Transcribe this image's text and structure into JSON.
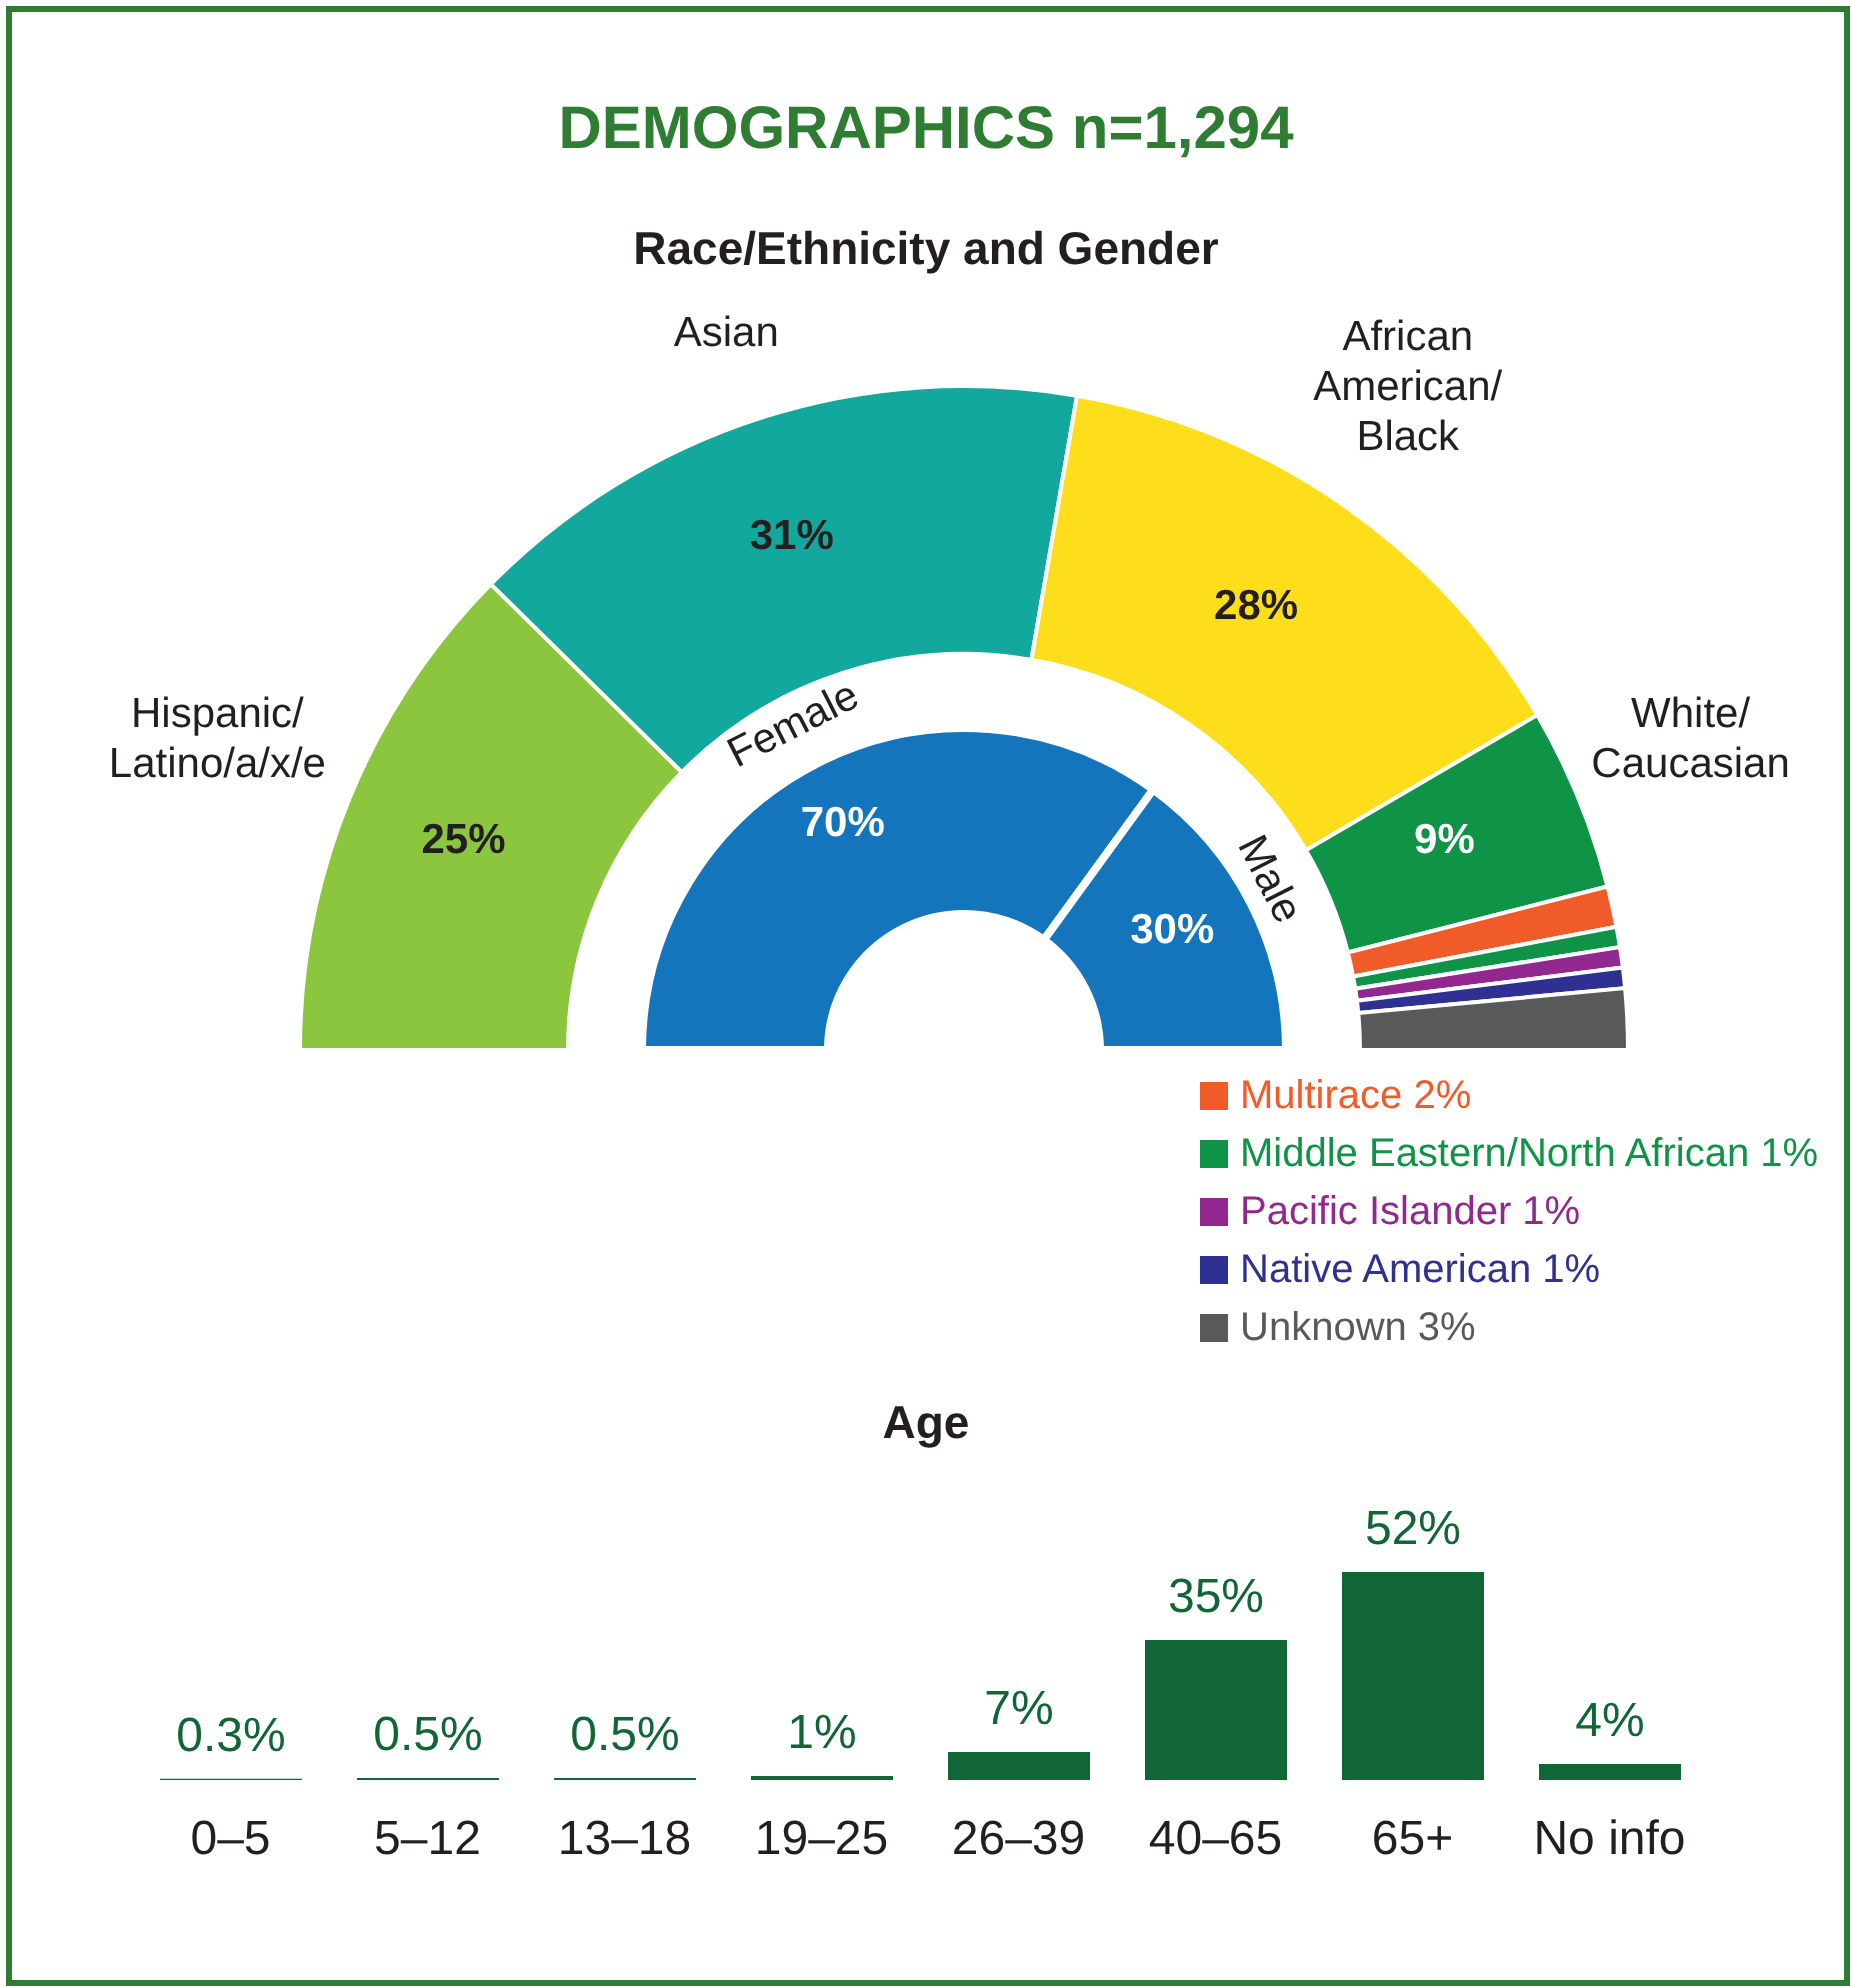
{
  "chart_data": [
    {
      "type": "donut",
      "title": "DEMOGRAPHICS n=1,294",
      "subtitle": "Race/Ethnicity and Gender",
      "categories": [
        "Hispanic/\nLatino/a/x/e",
        "Asian",
        "African\nAmerican/\nBlack",
        "White/\nCaucasian",
        "Multirace",
        "Middle Eastern/North African",
        "Pacific Islander",
        "Native American",
        "Unknown"
      ],
      "values": [
        25,
        31,
        28,
        9,
        2,
        1,
        1,
        1,
        3
      ],
      "value_labels": [
        "25%",
        "31%",
        "28%",
        "9%",
        "2%",
        "1%",
        "1%",
        "1%",
        "3%"
      ],
      "colors": [
        "#8cc63f",
        "#13a89e",
        "#fedd1b",
        "#0f9447",
        "#f15a29",
        "#0f9447",
        "#92278f",
        "#2e3192",
        "#58595b"
      ],
      "legend": "bottom right"
    },
    {
      "type": "donut",
      "categories": [
        "Female",
        "Male"
      ],
      "values": [
        70,
        30
      ],
      "value_labels": [
        "70%",
        "30%"
      ],
      "colors": [
        "#1475bc",
        "#1475bc"
      ]
    },
    {
      "type": "bar",
      "title": "Age",
      "categories": [
        "0–5",
        "5–12",
        "13–18",
        "19–25",
        "26–39",
        "40–65",
        "65+",
        "No info"
      ],
      "values": [
        0.3,
        0.5,
        0.5,
        1,
        7,
        35,
        52,
        4
      ],
      "value_labels": [
        "0.3%",
        "0.5%",
        "0.5%",
        "1%",
        "7%",
        "35%",
        "52%",
        "4%"
      ],
      "color": "#116636"
    }
  ]
}
